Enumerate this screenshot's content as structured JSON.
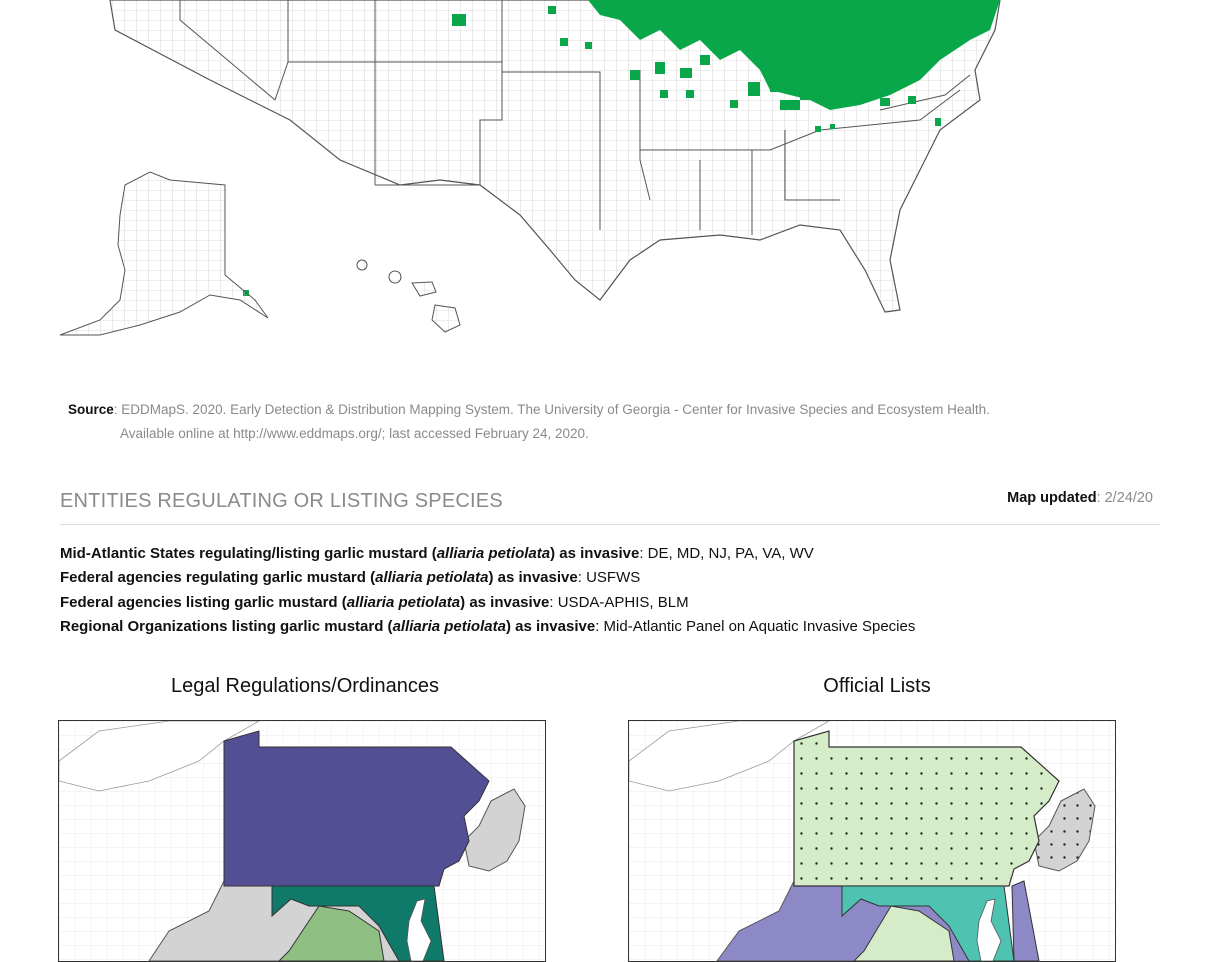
{
  "source": {
    "label": "Source",
    "line1": ": EDDMapS. 2020. Early Detection & Distribution Mapping System. The University of Georgia - Center for Invasive Species and Ecosystem Health.",
    "line2": "Available online at http://www.eddmaps.org/; last accessed February 24, 2020."
  },
  "section": {
    "title": "ENTITIES REGULATING OR LISTING SPECIES",
    "map_updated_label": "Map updated",
    "map_updated_value": ": 2/24/20"
  },
  "entities": [
    {
      "prefix": "Mid-Atlantic States regulating/listing garlic mustard (",
      "species": "alliaria petiolata",
      "suffix": ") as invasive",
      "value": ": DE, MD, NJ, PA, VA, WV"
    },
    {
      "prefix": "Federal agencies regulating garlic mustard (",
      "species": "alliaria petiolata",
      "suffix": ") as invasive",
      "value": ": USFWS"
    },
    {
      "prefix": "Federal agencies listing garlic mustard (",
      "species": "alliaria petiolata",
      "suffix": ") as invasive",
      "value": ": USDA-APHIS, BLM"
    },
    {
      "prefix": "Regional Organizations listing garlic mustard (",
      "species": "alliaria petiolata",
      "suffix": ") as invasive",
      "value": ": Mid-Atlantic Panel on Aquatic Invasive Species"
    }
  ],
  "panels": {
    "left_title": "Legal Regulations/Ordinances",
    "right_title": "Official Lists"
  },
  "colors": {
    "occurrence_green": "#0aa64a",
    "pa_regulation": "#534f94",
    "md_regulation": "#0f7a6a",
    "va_regulation": "#8fbf82",
    "nonlisting_gray": "#d3d3d3",
    "pa_list": "#d5ecc9",
    "wv_list": "#8d88c6",
    "md_list": "#4fc3b2"
  }
}
